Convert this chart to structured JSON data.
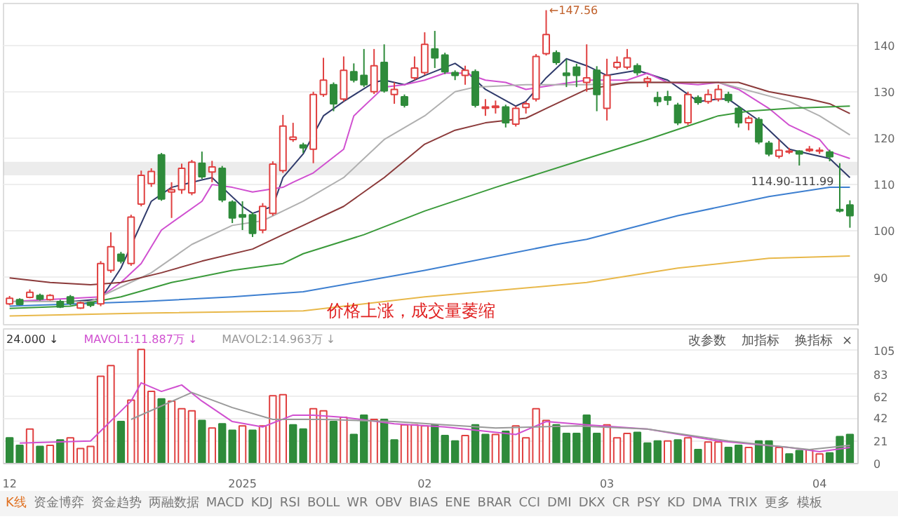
{
  "chart_data": [
    {
      "type": "candlestick",
      "categories": [
        "12",
        null,
        null,
        null,
        null,
        null,
        null,
        null,
        null,
        null,
        null,
        null,
        null,
        null,
        null,
        null,
        null,
        null,
        null,
        null,
        null,
        null,
        null,
        "2025",
        null,
        null,
        null,
        null,
        null,
        null,
        null,
        null,
        null,
        null,
        null,
        null,
        null,
        null,
        null,
        null,
        null,
        "02",
        null,
        null,
        null,
        null,
        null,
        null,
        null,
        null,
        null,
        null,
        null,
        null,
        null,
        null,
        null,
        null,
        null,
        "03",
        null,
        null,
        null,
        null,
        null,
        null,
        null,
        null,
        null,
        null,
        null,
        null,
        null,
        null,
        null,
        null,
        null,
        null,
        null,
        null,
        "04",
        null,
        null,
        null
      ],
      "ohlc": [
        [
          84.3,
          86,
          84,
          85.5
        ],
        [
          85.2,
          85.5,
          84,
          84.2
        ],
        [
          85.7,
          87.4,
          85.5,
          86.8
        ],
        [
          86.1,
          86.5,
          85,
          85.3
        ],
        [
          85.2,
          86.4,
          85,
          86.1
        ],
        [
          84.8,
          85.2,
          83.4,
          83.6
        ],
        [
          85.8,
          86.2,
          84,
          84.4
        ],
        [
          83.4,
          84.8,
          83.2,
          84.5
        ],
        [
          84.6,
          84.8,
          83.6,
          84
        ],
        [
          84.3,
          93.5,
          83.8,
          93
        ],
        [
          91.5,
          99.7,
          91,
          96.6
        ],
        [
          95,
          95.5,
          93,
          93.5
        ],
        [
          93,
          103.5,
          92.5,
          103
        ],
        [
          105.8,
          113,
          105.3,
          112
        ],
        [
          110.2,
          113.5,
          109.5,
          112.8
        ],
        [
          116.4,
          116.8,
          106.5,
          106.9
        ],
        [
          108.4,
          110.5,
          102.8,
          108.9
        ],
        [
          108.9,
          114.5,
          108,
          113.5
        ],
        [
          108.2,
          115.3,
          107.7,
          114.8
        ],
        [
          114.6,
          117.1,
          111.2,
          111.7
        ],
        [
          112.7,
          115.1,
          110.5,
          113.8
        ],
        [
          113.5,
          114,
          106.2,
          106.7
        ],
        [
          106.2,
          106.6,
          101.7,
          102.8
        ],
        [
          103.5,
          106.4,
          100.2,
          103
        ],
        [
          103.5,
          104,
          98.7,
          99.5
        ],
        [
          100.2,
          106,
          99.5,
          105.3
        ],
        [
          103.8,
          115,
          103.3,
          114.4
        ],
        [
          113,
          125,
          112.5,
          122.6
        ],
        [
          119.7,
          123.3,
          119.2,
          120.2
        ],
        [
          118.5,
          119,
          116.8,
          117.9
        ],
        [
          117.6,
          130,
          114.6,
          129.4
        ],
        [
          129.4,
          137.3,
          128.9,
          132.5
        ],
        [
          131.5,
          132,
          125.8,
          127.4
        ],
        [
          128.4,
          137.6,
          127.9,
          134.6
        ],
        [
          134.3,
          136.1,
          132,
          132.5
        ],
        [
          133.5,
          139.2,
          131,
          131.5
        ],
        [
          130,
          139.2,
          129.5,
          135.6
        ],
        [
          136.3,
          140.2,
          129.8,
          130.2
        ],
        [
          129.4,
          132,
          127.4,
          130.5
        ],
        [
          128.9,
          129.4,
          126.6,
          127.1
        ],
        [
          133,
          137.6,
          132.5,
          135.1
        ],
        [
          134.1,
          142.8,
          133.6,
          140.2
        ],
        [
          139.2,
          143.1,
          135.1,
          137.3
        ],
        [
          137.9,
          138.4,
          133.8,
          134.3
        ],
        [
          134.1,
          134.6,
          132.5,
          133.5
        ],
        [
          133.5,
          135.6,
          131.5,
          134.6
        ],
        [
          134.3,
          134.8,
          126.6,
          127.1
        ],
        [
          126.4,
          128.4,
          124.8,
          126.7
        ],
        [
          126.6,
          128.1,
          125.3,
          126.9
        ],
        [
          126.7,
          127.2,
          122.3,
          123.3
        ],
        [
          123,
          126.9,
          122.5,
          126.4
        ],
        [
          126.6,
          127.9,
          125.3,
          127.4
        ],
        [
          128.4,
          138.1,
          127.9,
          137.6
        ],
        [
          138.2,
          147.56,
          137.8,
          142.3
        ],
        [
          138.4,
          138.9,
          135.8,
          136.3
        ],
        [
          134,
          137,
          131,
          133.5
        ],
        [
          135.3,
          136,
          131,
          133.5
        ],
        [
          132,
          140.2,
          130,
          133
        ],
        [
          134.6,
          135.5,
          125.8,
          129.4
        ],
        [
          126.4,
          137.1,
          123.8,
          133.5
        ],
        [
          135.3,
          137.6,
          134.8,
          136.3
        ],
        [
          135.3,
          139.2,
          134.8,
          137.3
        ],
        [
          135.6,
          136.1,
          133.5,
          134.1
        ],
        [
          132.2,
          133.3,
          131,
          132.8
        ],
        [
          128.7,
          130,
          126.9,
          127.9
        ],
        [
          128.9,
          130.2,
          127.1,
          128.2
        ],
        [
          127.1,
          127.6,
          122.8,
          123.3
        ],
        [
          123.3,
          130,
          122.8,
          129.4
        ],
        [
          128.7,
          129.2,
          127.2,
          127.7
        ],
        [
          127.9,
          130.5,
          127.4,
          129.4
        ],
        [
          128.4,
          131.5,
          127.9,
          130.5
        ],
        [
          129.4,
          130,
          127.6,
          128.1
        ],
        [
          126.4,
          126.9,
          122.3,
          123.3
        ],
        [
          123.3,
          124.8,
          121.7,
          124.3
        ],
        [
          124,
          124.5,
          118.7,
          119.2
        ],
        [
          118.9,
          119.4,
          116.1,
          116.6
        ],
        [
          116.1,
          119.7,
          115.6,
          117.4
        ],
        [
          117,
          117.9,
          116.6,
          117.2
        ],
        [
          117.2,
          117.4,
          114.1,
          116.6
        ],
        [
          117.3,
          118.3,
          117,
          117.6
        ],
        [
          117.2,
          118,
          116.6,
          117.4
        ],
        [
          117,
          117.5,
          115,
          116
        ],
        [
          104.6,
          114.6,
          104,
          104.3
        ],
        [
          105.6,
          106.6,
          100.7,
          103.3
        ]
      ],
      "colors": [
        "#e04040",
        "#2e8b3a",
        "#e04040",
        "#2e8b3a",
        "#e04040",
        "#2e8b3a",
        "#2e8b3a",
        "#e04040",
        "#2e8b3a",
        "#e04040",
        "#e04040",
        "#2e8b3a",
        "#e04040",
        "#e04040",
        "#e04040",
        "#2e8b3a",
        "#e04040",
        "#e04040",
        "#e04040",
        "#2e8b3a",
        "#e04040",
        "#2e8b3a",
        "#2e8b3a",
        "#2e8b3a",
        "#2e8b3a",
        "#e04040",
        "#e04040",
        "#e04040",
        "#e04040",
        "#2e8b3a",
        "#e04040",
        "#e04040",
        "#2e8b3a",
        "#e04040",
        "#2e8b3a",
        "#2e8b3a",
        "#e04040",
        "#2e8b3a",
        "#e04040",
        "#2e8b3a",
        "#e04040",
        "#e04040",
        "#2e8b3a",
        "#2e8b3a",
        "#2e8b3a",
        "#e04040",
        "#2e8b3a",
        "#e04040",
        "#e04040",
        "#2e8b3a",
        "#e04040",
        "#e04040",
        "#e04040",
        "#e04040",
        "#2e8b3a",
        "#2e8b3a",
        "#2e8b3a",
        "#e04040",
        "#2e8b3a",
        "#e04040",
        "#e04040",
        "#e04040",
        "#2e8b3a",
        "#e04040",
        "#2e8b3a",
        "#2e8b3a",
        "#2e8b3a",
        "#e04040",
        "#2e8b3a",
        "#e04040",
        "#e04040",
        "#2e8b3a",
        "#2e8b3a",
        "#e04040",
        "#2e8b3a",
        "#2e8b3a",
        "#e04040",
        "#e04040",
        "#2e8b3a",
        "#e04040",
        "#e04040",
        "#2e8b3a",
        "#2e8b3a",
        "#2e8b3a"
      ],
      "ylim": [
        79.5,
        149
      ],
      "yticks": [
        90,
        100,
        110,
        120,
        130,
        140
      ],
      "grid": "y",
      "tick_labels": "y",
      "series": [
        {
          "type": "line",
          "color": "#2f3a6b",
          "values": [
            84.8,
            null,
            null,
            null,
            null,
            null,
            84.8,
            null,
            null,
            85.3,
            null,
            92,
            null,
            null,
            106.4,
            null,
            109.4,
            null,
            null,
            111,
            111.5,
            109.4,
            null,
            105.3,
            103.8,
            null,
            105.3,
            111.5,
            null,
            116.6,
            null,
            124.8,
            null,
            127.9,
            null,
            null,
            132,
            132.5,
            null,
            131.5,
            null,
            133.5,
            null,
            null,
            136.1,
            134.6,
            null,
            130.5,
            null,
            null,
            126.9,
            127.9,
            null,
            133,
            null,
            137.1,
            null,
            135.6,
            null,
            133.5,
            null,
            null,
            134.6,
            null,
            null,
            132.5,
            null,
            null,
            127.9,
            null,
            128.4,
            128.4,
            null,
            null,
            123.8,
            null,
            null,
            117.6,
            null,
            116.6,
            null,
            115.6,
            null,
            111.5
          ]
        },
        {
          "type": "line",
          "color": "#d050d0",
          "values": [
            84.8,
            null,
            null,
            null,
            null,
            null,
            null,
            null,
            null,
            85.8,
            null,
            88.9,
            null,
            93,
            null,
            100.2,
            null,
            null,
            null,
            106.4,
            110,
            null,
            109.4,
            null,
            108.4,
            null,
            null,
            109.4,
            110.5,
            null,
            112.5,
            null,
            null,
            117.6,
            124.8,
            null,
            null,
            131,
            null,
            131.5,
            null,
            132.5,
            null,
            134,
            null,
            134,
            null,
            132.5,
            null,
            132,
            null,
            130.5,
            null,
            null,
            131.5,
            null,
            null,
            132.5,
            null,
            null,
            null,
            132.5,
            null,
            134,
            null,
            132,
            null,
            null,
            131.5,
            null,
            132,
            null,
            130.5,
            null,
            null,
            126.4,
            null,
            122.8,
            null,
            null,
            119.7,
            117.1,
            null,
            115.6
          ]
        },
        {
          "type": "line",
          "color": "#b0b0b0",
          "values": [
            84.8,
            null,
            null,
            null,
            null,
            null,
            null,
            null,
            84.8,
            null,
            86.9,
            null,
            null,
            null,
            91,
            null,
            null,
            null,
            97.1,
            null,
            null,
            null,
            101.2,
            null,
            null,
            102.2,
            null,
            104.3,
            null,
            106.4,
            null,
            null,
            null,
            111.5,
            null,
            null,
            null,
            119.7,
            null,
            null,
            null,
            124.8,
            null,
            null,
            130,
            null,
            131,
            null,
            null,
            null,
            null,
            131.5,
            null,
            null,
            null,
            null,
            null,
            131.5,
            null,
            null,
            null,
            null,
            null,
            132,
            null,
            null,
            null,
            null,
            null,
            null,
            132,
            null,
            null,
            null,
            null,
            null,
            null,
            127.9,
            null,
            null,
            124.8,
            null,
            null,
            120.7
          ]
        },
        {
          "type": "line",
          "color": "#8b3a3a",
          "values": [
            89.9,
            null,
            null,
            null,
            88.9,
            null,
            null,
            null,
            88.4,
            null,
            null,
            88.9,
            null,
            null,
            null,
            91,
            null,
            null,
            null,
            93.5,
            null,
            null,
            null,
            null,
            96.1,
            null,
            null,
            99.2,
            null,
            101.2,
            null,
            null,
            null,
            105.3,
            null,
            null,
            null,
            111.5,
            null,
            null,
            null,
            118.7,
            null,
            null,
            121.7,
            null,
            null,
            123.3,
            null,
            null,
            null,
            124.3,
            null,
            126.4,
            null,
            null,
            null,
            130.5,
            null,
            null,
            null,
            132,
            null,
            null,
            null,
            null,
            132,
            null,
            null,
            null,
            null,
            null,
            132,
            null,
            null,
            130,
            null,
            null,
            null,
            128.4,
            null,
            127.4,
            null,
            125.3
          ]
        },
        {
          "type": "line",
          "color": "#3a9a3a",
          "values": [
            83.3,
            null,
            null,
            null,
            null,
            null,
            83.8,
            null,
            null,
            null,
            null,
            85.8,
            null,
            null,
            null,
            null,
            88.9,
            null,
            null,
            null,
            null,
            null,
            91.5,
            null,
            null,
            null,
            null,
            93,
            null,
            95.1,
            null,
            null,
            null,
            null,
            null,
            99.2,
            null,
            null,
            null,
            null,
            null,
            104.3,
            null,
            null,
            null,
            null,
            null,
            null,
            109.4,
            null,
            null,
            null,
            null,
            null,
            null,
            null,
            null,
            115.6,
            null,
            null,
            null,
            null,
            null,
            119.7,
            null,
            null,
            null,
            null,
            null,
            null,
            124.8,
            null,
            null,
            125.8,
            null,
            null,
            null,
            126.4,
            null,
            null,
            null,
            null,
            null,
            126.9
          ]
        },
        {
          "type": "line",
          "color": "#3d7fd0",
          "values": [
            83.8,
            null,
            null,
            null,
            null,
            null,
            null,
            null,
            null,
            null,
            null,
            null,
            null,
            84.8,
            null,
            null,
            null,
            null,
            null,
            null,
            null,
            null,
            85.8,
            null,
            null,
            null,
            null,
            null,
            null,
            86.9,
            null,
            null,
            null,
            null,
            null,
            null,
            null,
            null,
            null,
            null,
            null,
            91.5,
            null,
            null,
            null,
            null,
            null,
            null,
            null,
            null,
            null,
            null,
            null,
            null,
            97.1,
            null,
            null,
            98.2,
            null,
            null,
            null,
            null,
            null,
            null,
            null,
            null,
            103.3,
            null,
            null,
            null,
            null,
            null,
            null,
            null,
            null,
            107.4,
            null,
            null,
            null,
            null,
            null,
            109.4,
            null,
            109.4
          ]
        },
        {
          "type": "line",
          "color": "#e8b84a",
          "values": [
            81.7,
            null,
            null,
            null,
            null,
            null,
            null,
            null,
            null,
            null,
            null,
            null,
            null,
            82.3,
            null,
            null,
            null,
            null,
            null,
            null,
            null,
            null,
            null,
            null,
            null,
            null,
            null,
            null,
            null,
            82.8,
            null,
            null,
            null,
            null,
            null,
            null,
            null,
            null,
            null,
            null,
            null,
            85.8,
            null,
            null,
            null,
            null,
            null,
            null,
            null,
            null,
            null,
            null,
            null,
            null,
            null,
            null,
            null,
            88.9,
            null,
            null,
            null,
            null,
            null,
            null,
            null,
            null,
            92,
            null,
            null,
            null,
            null,
            null,
            null,
            null,
            null,
            94.1,
            null,
            null,
            null,
            null,
            null,
            null,
            null,
            94.6
          ]
        }
      ],
      "annotations": [
        "←147.56",
        "价格上涨，成交量萎缩"
      ],
      "bands": [
        {
          "axis": "y",
          "from": 111.99,
          "to": 114.9,
          "label": "114.90-111.99",
          "color": "#c0c0c0"
        }
      ]
    },
    {
      "type": "bar",
      "categories": [
        "12",
        null,
        null,
        null,
        null,
        null,
        null,
        null,
        null,
        null,
        null,
        null,
        null,
        null,
        null,
        null,
        null,
        null,
        null,
        null,
        null,
        null,
        null,
        "2025",
        null,
        null,
        null,
        null,
        null,
        null,
        null,
        null,
        null,
        null,
        null,
        null,
        null,
        null,
        null,
        null,
        null,
        "02",
        null,
        null,
        null,
        null,
        null,
        null,
        null,
        null,
        null,
        null,
        null,
        null,
        null,
        null,
        null,
        null,
        null,
        "03",
        null,
        null,
        null,
        null,
        null,
        null,
        null,
        null,
        null,
        null,
        null,
        null,
        null,
        null,
        null,
        null,
        null,
        null,
        null,
        null,
        "04",
        null,
        null,
        null
      ],
      "values": [
        24,
        17,
        32,
        16,
        17,
        22,
        24,
        14,
        16,
        81,
        91,
        39,
        59,
        106,
        67,
        60,
        58,
        51,
        49,
        40,
        33,
        37,
        31,
        35,
        31,
        35,
        63,
        64,
        36,
        32,
        51,
        49,
        39,
        43,
        27,
        45,
        41,
        41,
        22,
        36,
        36,
        35,
        36,
        26,
        21,
        26,
        36,
        27,
        27,
        30,
        35,
        24,
        51,
        40,
        36,
        28,
        28,
        45,
        28,
        36,
        24,
        28,
        29,
        19,
        21,
        21,
        22,
        24,
        13,
        20,
        20,
        15,
        17,
        15,
        21,
        21,
        15,
        9,
        12,
        13,
        9,
        10,
        25,
        27
      ],
      "colors": [
        "#2e8b3a",
        "#2e8b3a",
        "#e04040",
        "#2e8b3a",
        "#e04040",
        "#2e8b3a",
        "#e04040",
        "#e04040",
        "#e04040",
        "#e04040",
        "#e04040",
        "#2e8b3a",
        "#e04040",
        "#e04040",
        "#e04040",
        "#2e8b3a",
        "#e04040",
        "#e04040",
        "#e04040",
        "#2e8b3a",
        "#e04040",
        "#2e8b3a",
        "#2e8b3a",
        "#e04040",
        "#2e8b3a",
        "#e04040",
        "#e04040",
        "#e04040",
        "#2e8b3a",
        "#2e8b3a",
        "#e04040",
        "#e04040",
        "#2e8b3a",
        "#e04040",
        "#2e8b3a",
        "#2e8b3a",
        "#e04040",
        "#2e8b3a",
        "#2e8b3a",
        "#e04040",
        "#e04040",
        "#e04040",
        "#2e8b3a",
        "#2e8b3a",
        "#2e8b3a",
        "#e04040",
        "#2e8b3a",
        "#2e8b3a",
        "#e04040",
        "#2e8b3a",
        "#e04040",
        "#e04040",
        "#e04040",
        "#e04040",
        "#2e8b3a",
        "#2e8b3a",
        "#2e8b3a",
        "#2e8b3a",
        "#2e8b3a",
        "#e04040",
        "#e04040",
        "#e04040",
        "#2e8b3a",
        "#2e8b3a",
        "#2e8b3a",
        "#e04040",
        "#2e8b3a",
        "#e04040",
        "#2e8b3a",
        "#e04040",
        "#e04040",
        "#2e8b3a",
        "#2e8b3a",
        "#e04040",
        "#2e8b3a",
        "#2e8b3a",
        "#e04040",
        "#2e8b3a",
        "#2e8b3a",
        "#e04040",
        "#e04040",
        "#2e8b3a",
        "#2e8b3a",
        "#2e8b3a"
      ],
      "ylim": [
        0,
        125
      ],
      "yticks": [
        0,
        21,
        42,
        62,
        83,
        105
      ],
      "grid": "y",
      "series": [
        {
          "type": "line",
          "name": "MAVOL1:11.887万 ↓",
          "color": "#d050d0",
          "values": [
            null,
            19,
            null,
            null,
            null,
            null,
            null,
            null,
            21,
            null,
            null,
            null,
            58,
            75,
            null,
            67,
            null,
            73,
            null,
            58,
            null,
            null,
            39,
            null,
            null,
            34,
            null,
            null,
            45,
            null,
            45,
            null,
            null,
            43,
            null,
            null,
            null,
            null,
            37,
            null,
            null,
            null,
            null,
            34,
            null,
            32,
            null,
            null,
            null,
            null,
            27,
            null,
            null,
            39,
            null,
            null,
            null,
            36,
            null,
            null,
            null,
            null,
            null,
            32,
            null,
            null,
            null,
            null,
            null,
            null,
            21,
            null,
            null,
            null,
            null,
            null,
            null,
            15,
            null,
            null,
            11,
            null,
            null,
            15
          ]
        },
        {
          "type": "line",
          "name": "MAVOL2:14.963万 ↓",
          "color": "#999999",
          "values": [
            null,
            null,
            null,
            null,
            null,
            null,
            null,
            null,
            null,
            null,
            null,
            null,
            41,
            null,
            null,
            null,
            null,
            null,
            66,
            null,
            null,
            null,
            52,
            null,
            null,
            null,
            41,
            null,
            null,
            null,
            null,
            41,
            null,
            null,
            null,
            null,
            null,
            null,
            39,
            null,
            null,
            null,
            null,
            36,
            null,
            null,
            null,
            null,
            33,
            null,
            null,
            null,
            null,
            null,
            null,
            null,
            35,
            null,
            null,
            null,
            null,
            null,
            null,
            32,
            null,
            null,
            null,
            null,
            null,
            null,
            null,
            21,
            null,
            null,
            null,
            null,
            null,
            null,
            null,
            13,
            null,
            null,
            null,
            17
          ]
        }
      ],
      "annotations": [
        "24.000 ↓",
        "改参数",
        "加指标",
        "换指标",
        "×"
      ]
    },
    {
      "type": "other",
      "annotations": [
        "K线",
        "资金博弈",
        "资金趋势",
        "两融数据",
        "MACD",
        "KDJ",
        "RSI",
        "BOLL",
        "WR",
        "OBV",
        "BIAS",
        "ENE",
        "BRAR",
        "CCI",
        "DMI",
        "DKX",
        "CR",
        "PSY",
        "KD",
        "DMA",
        "TRIX",
        "更多",
        "模板"
      ]
    }
  ]
}
